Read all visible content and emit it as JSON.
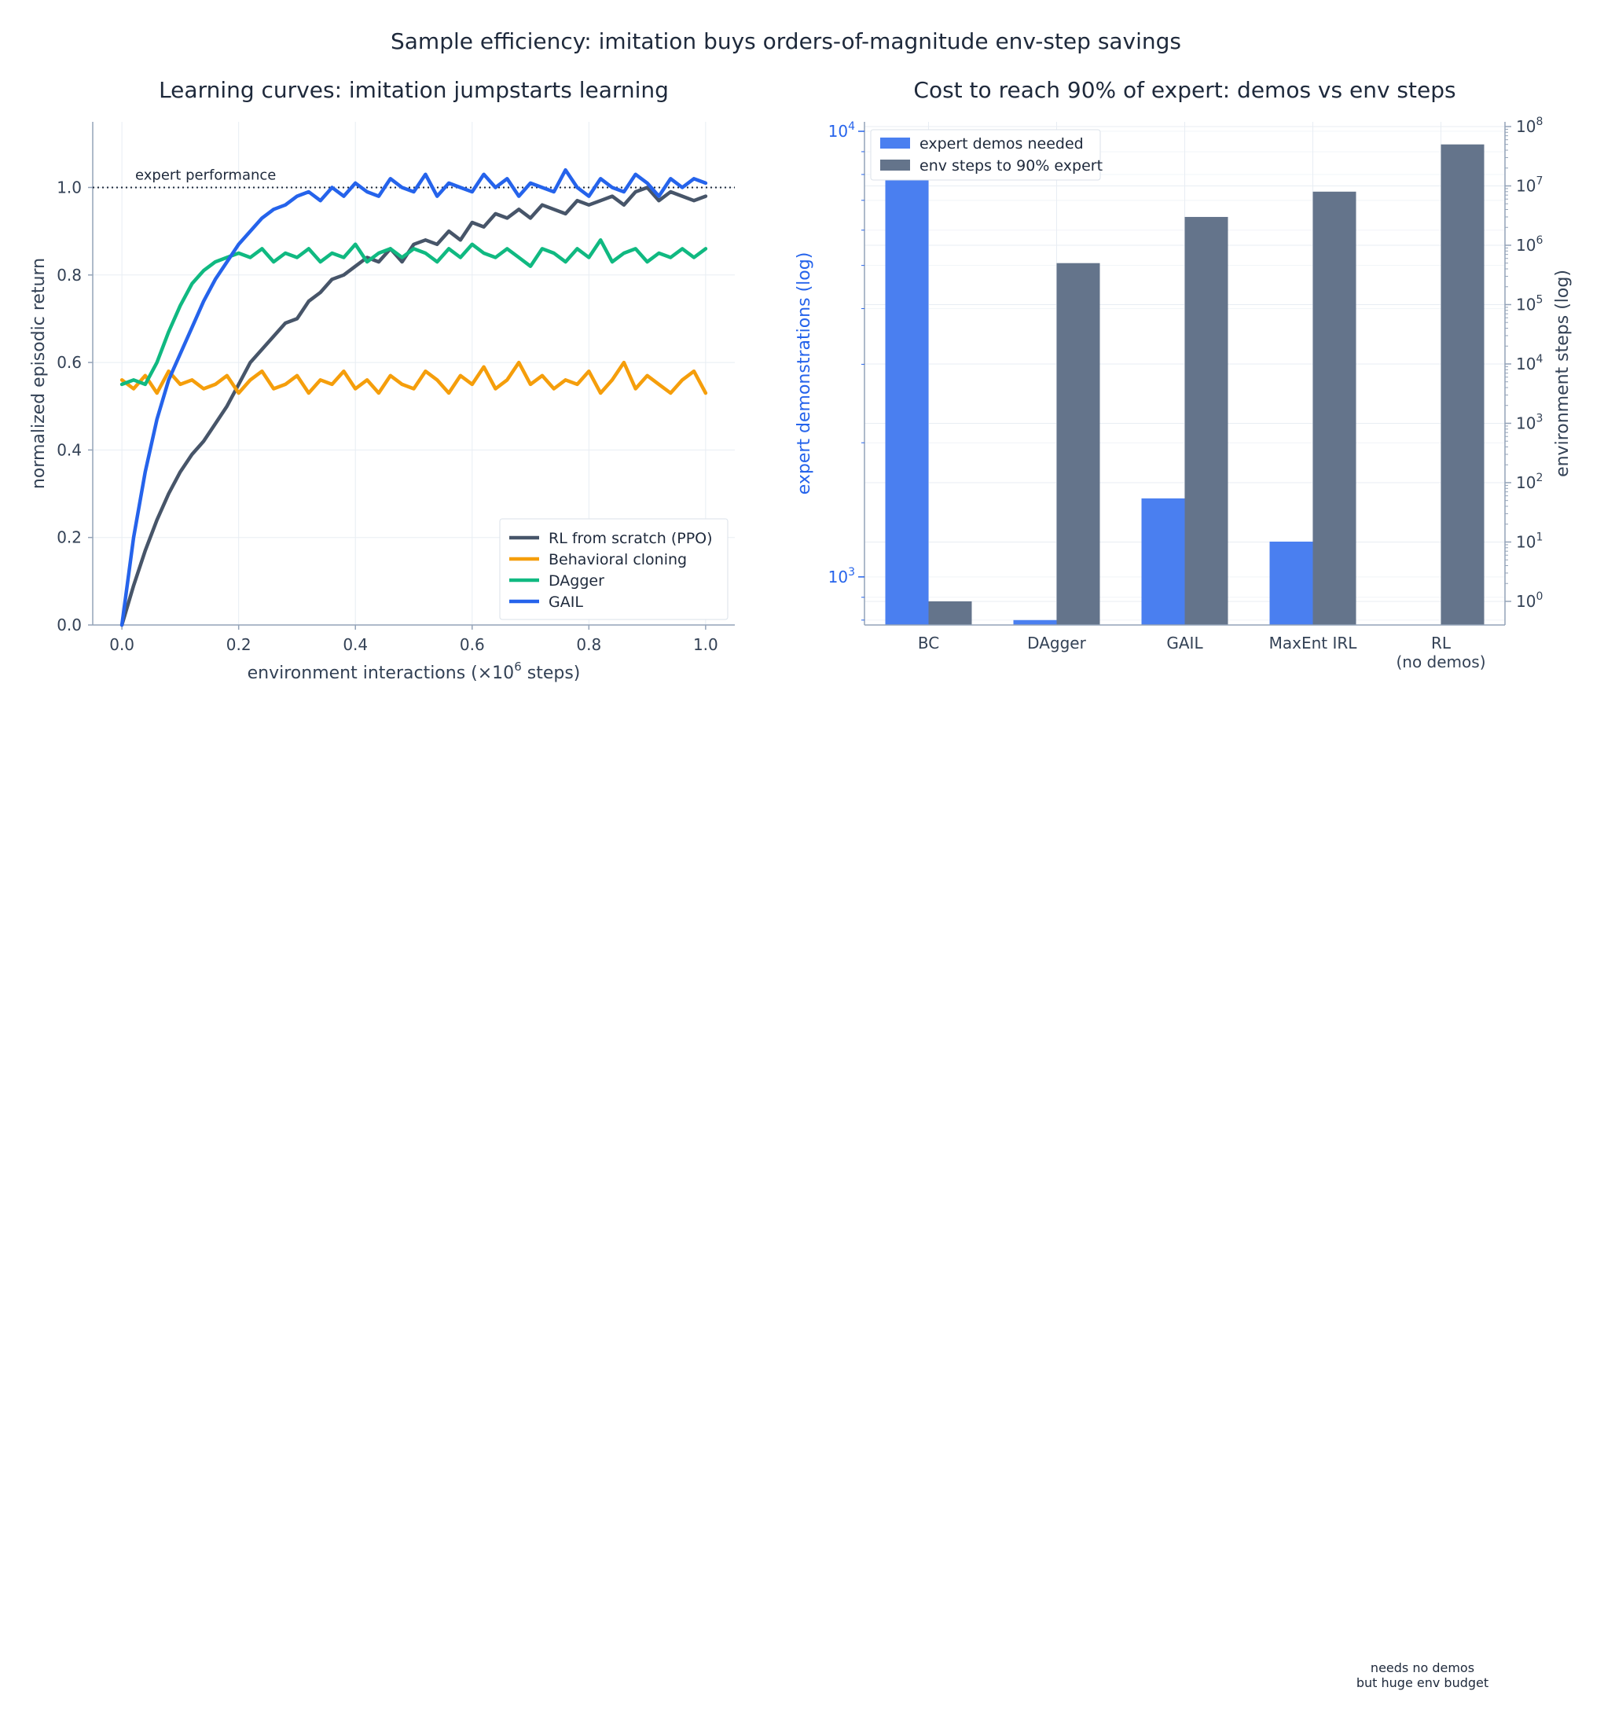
{
  "suptitle": "Sample efficiency: imitation buys orders-of-magnitude env-step savings",
  "colors": {
    "ppo": "#475569",
    "bc": "#f59e0b",
    "dagger": "#10b981",
    "gail": "#2563eb",
    "demo_bar": "#4a7ff0",
    "env_bar": "#64748b",
    "grid": "#e8edf3",
    "axis": "#94a3b8",
    "text": "#334155",
    "left_axis_text": "#2563eb"
  },
  "chart_data": [
    {
      "type": "line",
      "title": "Learning curves: imitation jumpstarts learning",
      "xlabel_main": "environment interactions (×10",
      "xlabel_sup": "6",
      "xlabel_tail": " steps)",
      "ylabel": "normalized episodic return",
      "xlim": [
        -0.05,
        1.05
      ],
      "ylim": [
        0.0,
        1.15
      ],
      "xticks": [
        0.0,
        0.2,
        0.4,
        0.6,
        0.8,
        1.0
      ],
      "xtick_labels": [
        "0.0",
        "0.2",
        "0.4",
        "0.6",
        "0.8",
        "1.0"
      ],
      "yticks": [
        0.0,
        0.2,
        0.4,
        0.6,
        0.8,
        1.0
      ],
      "ytick_labels": [
        "0.0",
        "0.2",
        "0.4",
        "0.6",
        "0.8",
        "1.0"
      ],
      "grid": true,
      "legend_position": "bottom-right",
      "reference_line": {
        "y": 1.0,
        "label": "expert performance",
        "style": "dotted"
      },
      "series": [
        {
          "name": "RL from scratch (PPO)",
          "color_key": "ppo",
          "x": [
            0,
            0.02,
            0.04,
            0.06,
            0.08,
            0.1,
            0.12,
            0.14,
            0.16,
            0.18,
            0.2,
            0.22,
            0.24,
            0.26,
            0.28,
            0.3,
            0.32,
            0.34,
            0.36,
            0.38,
            0.4,
            0.42,
            0.44,
            0.46,
            0.48,
            0.5,
            0.52,
            0.54,
            0.56,
            0.58,
            0.6,
            0.62,
            0.64,
            0.66,
            0.68,
            0.7,
            0.72,
            0.74,
            0.76,
            0.78,
            0.8,
            0.82,
            0.84,
            0.86,
            0.88,
            0.9,
            0.92,
            0.94,
            0.96,
            0.98,
            1.0
          ],
          "y": [
            0.0,
            0.09,
            0.17,
            0.24,
            0.3,
            0.35,
            0.39,
            0.42,
            0.46,
            0.5,
            0.55,
            0.6,
            0.63,
            0.66,
            0.69,
            0.7,
            0.74,
            0.76,
            0.79,
            0.8,
            0.82,
            0.84,
            0.83,
            0.86,
            0.83,
            0.87,
            0.88,
            0.87,
            0.9,
            0.88,
            0.92,
            0.91,
            0.94,
            0.93,
            0.95,
            0.93,
            0.96,
            0.95,
            0.94,
            0.97,
            0.96,
            0.97,
            0.98,
            0.96,
            0.99,
            1.0,
            0.97,
            0.99,
            0.98,
            0.97,
            0.98
          ]
        },
        {
          "name": "Behavioral cloning",
          "color_key": "bc",
          "x": [
            0,
            0.02,
            0.04,
            0.06,
            0.08,
            0.1,
            0.12,
            0.14,
            0.16,
            0.18,
            0.2,
            0.22,
            0.24,
            0.26,
            0.28,
            0.3,
            0.32,
            0.34,
            0.36,
            0.38,
            0.4,
            0.42,
            0.44,
            0.46,
            0.48,
            0.5,
            0.52,
            0.54,
            0.56,
            0.58,
            0.6,
            0.62,
            0.64,
            0.66,
            0.68,
            0.7,
            0.72,
            0.74,
            0.76,
            0.78,
            0.8,
            0.82,
            0.84,
            0.86,
            0.88,
            0.9,
            0.92,
            0.94,
            0.96,
            0.98,
            1.0
          ],
          "y": [
            0.56,
            0.54,
            0.57,
            0.53,
            0.58,
            0.55,
            0.56,
            0.54,
            0.55,
            0.57,
            0.53,
            0.56,
            0.58,
            0.54,
            0.55,
            0.57,
            0.53,
            0.56,
            0.55,
            0.58,
            0.54,
            0.56,
            0.53,
            0.57,
            0.55,
            0.54,
            0.58,
            0.56,
            0.53,
            0.57,
            0.55,
            0.59,
            0.54,
            0.56,
            0.6,
            0.55,
            0.57,
            0.54,
            0.56,
            0.55,
            0.58,
            0.53,
            0.56,
            0.6,
            0.54,
            0.57,
            0.55,
            0.53,
            0.56,
            0.58,
            0.53
          ]
        },
        {
          "name": "DAgger",
          "color_key": "dagger",
          "x": [
            0,
            0.02,
            0.04,
            0.06,
            0.08,
            0.1,
            0.12,
            0.14,
            0.16,
            0.18,
            0.2,
            0.22,
            0.24,
            0.26,
            0.28,
            0.3,
            0.32,
            0.34,
            0.36,
            0.38,
            0.4,
            0.42,
            0.44,
            0.46,
            0.48,
            0.5,
            0.52,
            0.54,
            0.56,
            0.58,
            0.6,
            0.62,
            0.64,
            0.66,
            0.68,
            0.7,
            0.72,
            0.74,
            0.76,
            0.78,
            0.8,
            0.82,
            0.84,
            0.86,
            0.88,
            0.9,
            0.92,
            0.94,
            0.96,
            0.98,
            1.0
          ],
          "y": [
            0.55,
            0.56,
            0.55,
            0.6,
            0.67,
            0.73,
            0.78,
            0.81,
            0.83,
            0.84,
            0.85,
            0.84,
            0.86,
            0.83,
            0.85,
            0.84,
            0.86,
            0.83,
            0.85,
            0.84,
            0.87,
            0.83,
            0.85,
            0.86,
            0.84,
            0.86,
            0.85,
            0.83,
            0.86,
            0.84,
            0.87,
            0.85,
            0.84,
            0.86,
            0.84,
            0.82,
            0.86,
            0.85,
            0.83,
            0.86,
            0.84,
            0.88,
            0.83,
            0.85,
            0.86,
            0.83,
            0.85,
            0.84,
            0.86,
            0.84,
            0.86
          ]
        },
        {
          "name": "GAIL",
          "color_key": "gail",
          "x": [
            0,
            0.02,
            0.04,
            0.06,
            0.08,
            0.1,
            0.12,
            0.14,
            0.16,
            0.18,
            0.2,
            0.22,
            0.24,
            0.26,
            0.28,
            0.3,
            0.32,
            0.34,
            0.36,
            0.38,
            0.4,
            0.42,
            0.44,
            0.46,
            0.48,
            0.5,
            0.52,
            0.54,
            0.56,
            0.58,
            0.6,
            0.62,
            0.64,
            0.66,
            0.68,
            0.7,
            0.72,
            0.74,
            0.76,
            0.78,
            0.8,
            0.82,
            0.84,
            0.86,
            0.88,
            0.9,
            0.92,
            0.94,
            0.96,
            0.98,
            1.0
          ],
          "y": [
            0.0,
            0.2,
            0.35,
            0.47,
            0.56,
            0.62,
            0.68,
            0.74,
            0.79,
            0.83,
            0.87,
            0.9,
            0.93,
            0.95,
            0.96,
            0.98,
            0.99,
            0.97,
            1.0,
            0.98,
            1.01,
            0.99,
            0.98,
            1.02,
            1.0,
            0.99,
            1.03,
            0.98,
            1.01,
            1.0,
            0.99,
            1.03,
            1.0,
            1.02,
            0.98,
            1.01,
            1.0,
            0.99,
            1.04,
            1.0,
            0.98,
            1.02,
            1.0,
            0.99,
            1.03,
            1.01,
            0.98,
            1.02,
            1.0,
            1.02,
            1.01
          ]
        }
      ]
    },
    {
      "type": "bar",
      "title": "Cost to reach 90% of expert: demos vs env steps",
      "categories": [
        "BC",
        "DAgger",
        "GAIL",
        "MaxEnt IRL",
        "RL"
      ],
      "category_sublabels": [
        "",
        "",
        "",
        "",
        "(no demos)"
      ],
      "ylabel_left": "expert demonstrations (log)",
      "ylabel_right": "environment steps (log)",
      "left_scale": "log",
      "right_scale": "log",
      "left_ylim": [
        780,
        10500
      ],
      "right_ylim": [
        0.4,
        120000000
      ],
      "left_tick_labels": [
        {
          "base": "10",
          "exp": "3",
          "value": 1000
        },
        {
          "base": "10",
          "exp": "4",
          "value": 10000
        }
      ],
      "right_tick_labels": [
        {
          "base": "10",
          "exp": "0",
          "value": 1
        },
        {
          "base": "10",
          "exp": "1",
          "value": 10
        },
        {
          "base": "10",
          "exp": "2",
          "value": 100
        },
        {
          "base": "10",
          "exp": "3",
          "value": 1000
        },
        {
          "base": "10",
          "exp": "4",
          "value": 10000
        },
        {
          "base": "10",
          "exp": "5",
          "value": 100000
        },
        {
          "base": "10",
          "exp": "6",
          "value": 1000000
        },
        {
          "base": "10",
          "exp": "7",
          "value": 10000000
        },
        {
          "base": "10",
          "exp": "8",
          "value": 100000000
        }
      ],
      "grid": true,
      "legend_position": "top-left",
      "series": [
        {
          "name": "expert demos needed",
          "axis": "left",
          "color_key": "demo_bar",
          "values": [
            10000,
            800,
            1500,
            1200,
            0
          ]
        },
        {
          "name": "env steps to 90% expert",
          "axis": "right",
          "color_key": "env_bar",
          "values": [
            1,
            500000,
            3000000,
            8000000,
            50000000
          ]
        }
      ]
    }
  ],
  "annotation_bottom": {
    "line1": "needs no demos",
    "line2": "but huge env budget"
  }
}
